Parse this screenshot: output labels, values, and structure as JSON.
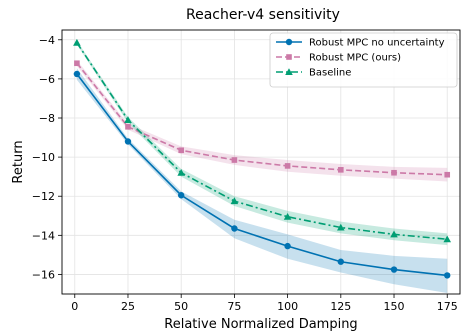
{
  "chart_data": {
    "type": "line",
    "title": "Reacher-v4 sensitivity",
    "xlabel": "Relative Normalized Damping",
    "ylabel": "Return",
    "x": [
      1,
      25,
      50,
      75,
      100,
      125,
      150,
      175
    ],
    "xticks": [
      0,
      25,
      50,
      75,
      100,
      125,
      150,
      175
    ],
    "yticks": [
      -16,
      -14,
      -12,
      -10,
      -8,
      -6,
      -4
    ],
    "xlim": [
      -6,
      181
    ],
    "ylim": [
      -17.0,
      -3.5
    ],
    "grid": true,
    "legend_position": "top-right",
    "series": [
      {
        "name": "Robust MPC no uncertainty",
        "color": "#0072b2",
        "linestyle": "solid",
        "marker": "circle",
        "values": [
          -5.75,
          -9.2,
          -11.95,
          -13.65,
          -14.55,
          -15.35,
          -15.75,
          -16.05
        ],
        "lower": [
          -6.05,
          -9.35,
          -12.15,
          -14.15,
          -15.2,
          -15.9,
          -16.5,
          -16.95
        ],
        "upper": [
          -5.45,
          -9.05,
          -11.75,
          -13.2,
          -13.95,
          -14.75,
          -15.05,
          -15.2
        ]
      },
      {
        "name": "Robust MPC (ours)",
        "color": "#cc79a7",
        "linestyle": "dashed",
        "marker": "square",
        "values": [
          -5.2,
          -8.45,
          -9.65,
          -10.15,
          -10.45,
          -10.65,
          -10.8,
          -10.9
        ],
        "lower": [
          -5.35,
          -8.6,
          -9.85,
          -10.4,
          -10.75,
          -10.95,
          -11.1,
          -11.25
        ],
        "upper": [
          -5.05,
          -8.3,
          -9.45,
          -9.9,
          -10.15,
          -10.35,
          -10.5,
          -10.55
        ]
      },
      {
        "name": "Baseline",
        "color": "#009e73",
        "linestyle": "dashdot",
        "marker": "triangle",
        "values": [
          -4.15,
          -8.1,
          -10.8,
          -12.25,
          -13.05,
          -13.6,
          -13.95,
          -14.2
        ],
        "lower": [
          -4.25,
          -8.25,
          -11.0,
          -12.5,
          -13.35,
          -13.9,
          -14.25,
          -14.5
        ],
        "upper": [
          -4.05,
          -7.95,
          -10.6,
          -12.0,
          -12.75,
          -13.3,
          -13.65,
          -13.9
        ]
      }
    ]
  }
}
